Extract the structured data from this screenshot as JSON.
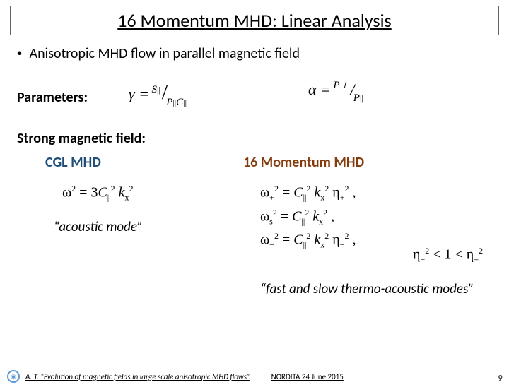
{
  "title": "16 Momentum MHD: Linear Analysis",
  "line1_prefix": "•",
  "line1": "Anisotropic MHD flow in parallel magnetic field",
  "params_label": "Parameters:",
  "gamma_html": "<span class='var'>γ</span> = <span class='frac-sup'><i>S</i><span class='sub'>||</span></span><span class='frac-slash'>/</span><span class='frac-sub'><i>P</i><span class='sub'>||</span><i>C</i><span class='sub'>||</span></span>",
  "alpha_html": "<span class='var'>α</span> = <span class='frac-sup'><i>P</i>⊥</span><span class='frac-slash'>/</span><span class='frac-sub'><i>P</i><span class='sub'>||</span></span>",
  "strong_label": "Strong magnetic field:",
  "cgl_head": "CGL MHD",
  "cgl_color": "#1f4e79",
  "mom_head": "16 Momentum MHD",
  "mom_color": "#843c0c",
  "cgl_eq_html": "ω<span class='sup'>2</span> = 3<span class='var'>C</span><span class='subsc'>||</span><span class='sup'>2</span> <span class='var'>k</span><span class='subsc'>x</span><span class='sup'>2</span>",
  "mom_eq1_html": "ω<span class='subsc'>+</span><span class='sup'>2</span> = <span class='var'>C</span><span class='subsc'>||</span><span class='sup'>2</span> <span class='var'>k</span><span class='subsc'>x</span><span class='sup'>2</span> η<span class='subsc'>+</span><span class='sup'>2</span> ,",
  "mom_eq2_html": "ω<span class='subsc'>s</span><span class='sup'>2</span> = <span class='var'>C</span><span class='subsc'>||</span><span class='sup'>2</span> <span class='var'>k</span><span class='subsc'>x</span><span class='sup'>2</span> ,",
  "mom_eq3_html": "ω<span class='subsc'>−</span><span class='sup'>2</span> = <span class='var'>C</span><span class='subsc'>||</span><span class='sup'>2</span> <span class='var'>k</span><span class='subsc'>x</span><span class='sup'>2</span> η<span class='subsc'>−</span><span class='sup'>2</span> ,",
  "eta_ineq_html": "η<span class='subsc'>−</span><span class='sup'>2</span> &lt; 1 &lt; η<span class='subsc'>+</span><span class='sup'>2</span>",
  "acoustic_mode": "“acoustic mode”",
  "thermo_mode": "“fast and slow thermo-acoustic modes”",
  "footer": {
    "author": "A. T.  “Evolution of magnetic fields in large scale anisotropic MHD flows”",
    "venue": "NORDITA  24 June 2015",
    "page": "9"
  },
  "colors": {
    "title_underline": "#000000",
    "background": "#ffffff"
  },
  "fontsizes": {
    "title": 26,
    "body": 20,
    "footer": 11
  }
}
